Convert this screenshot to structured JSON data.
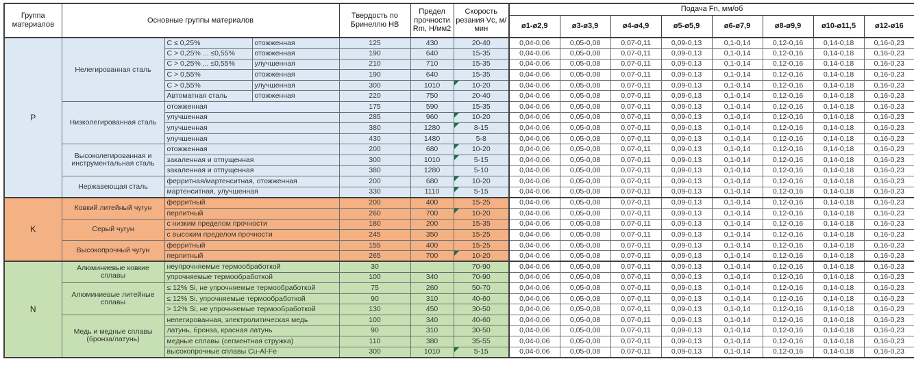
{
  "table": {
    "headers": {
      "group": "Группа материалов",
      "main_groups": "Основные группы материалов",
      "hardness": "Твердость по Бринеллю HB",
      "strength": "Предел прочности Rm, Н/мм2",
      "speed": "Скорость резания Vc, м/мин",
      "feed": "Подача Fn, мм/об",
      "diameters": [
        "ø1-ø2,9",
        "ø3-ø3,9",
        "ø4-ø4,9",
        "ø5-ø5,9",
        "ø6-ø7,9",
        "ø8-ø9,9",
        "ø10-ø11,5",
        "ø12-ø16"
      ]
    },
    "feeds": [
      "0,04-0,06",
      "0,05-0,08",
      "0,07-0,11",
      "0,09-0,13",
      "0,1-0,14",
      "0,12-0,16",
      "0,14-0,18",
      "0,16-0,23"
    ],
    "comment_flag_color": "#1e7145",
    "groups": [
      {
        "code": "P",
        "color": "#DCE9F5",
        "families": [
          {
            "name": "Нелегированная сталь",
            "rows": [
              {
                "cond": "C ≤ 0,25%",
                "state": "отожженная",
                "hb": "125",
                "rm": "430",
                "vc": "20-40",
                "note": false
              },
              {
                "cond": "C > 0,25% ... ≤0,55%",
                "state": "отожженная",
                "hb": "190",
                "rm": "640",
                "vc": "15-35",
                "note": false
              },
              {
                "cond": "C > 0,25% ... ≤0,55%",
                "state": "улучшенная",
                "hb": "210",
                "rm": "710",
                "vc": "15-35",
                "note": false
              },
              {
                "cond": "C > 0,55%",
                "state": "отожженная",
                "hb": "190",
                "rm": "640",
                "vc": "15-35",
                "note": false
              },
              {
                "cond": "C > 0,55%",
                "state": "улучшенная",
                "hb": "300",
                "rm": "1010",
                "vc": "10-20",
                "note": true
              },
              {
                "cond": "Автоматная сталь",
                "state": "отожженная",
                "hb": "220",
                "rm": "750",
                "vc": "20-40",
                "note": false
              }
            ]
          },
          {
            "name": "Низколегированная сталь",
            "rows": [
              {
                "desc": "отожженная",
                "hb": "175",
                "rm": "590",
                "vc": "15-35",
                "note": false
              },
              {
                "desc": "улучшенная",
                "hb": "285",
                "rm": "960",
                "vc": "10-20",
                "note": true
              },
              {
                "desc": "улучшенная",
                "hb": "380",
                "rm": "1280",
                "vc": "8-15",
                "note": true
              },
              {
                "desc": "улучшенная",
                "hb": "430",
                "rm": "1480",
                "vc": "5-8",
                "note": false
              }
            ]
          },
          {
            "name": "Высоколегированная и инструментальная сталь",
            "rows": [
              {
                "desc": "отожженная",
                "hb": "200",
                "rm": "680",
                "vc": "10-20",
                "note": true
              },
              {
                "desc": "закаленная и отпущенная",
                "hb": "300",
                "rm": "1010",
                "vc": "5-15",
                "note": true
              },
              {
                "desc": "закаленная и отпущенная",
                "hb": "380",
                "rm": "1280",
                "vc": "5-10",
                "note": false
              }
            ]
          },
          {
            "name": "Нержавеющая сталь",
            "rows": [
              {
                "desc": "ферритная/мартенситная, отожженная",
                "hb": "200",
                "rm": "680",
                "vc": "10-20",
                "note": true
              },
              {
                "desc": "мартенситная, улучшенная",
                "hb": "330",
                "rm": "1110",
                "vc": "5-15",
                "note": true
              }
            ]
          }
        ]
      },
      {
        "code": "K",
        "color": "#F4B183",
        "families": [
          {
            "name": "Ковкий литейный чугун",
            "rows": [
              {
                "desc": "ферритный",
                "hb": "200",
                "rm": "400",
                "vc": "15-25",
                "note": false
              },
              {
                "desc": "перлитный",
                "hb": "260",
                "rm": "700",
                "vc": "10-20",
                "note": true
              }
            ]
          },
          {
            "name": "Серый чугун",
            "rows": [
              {
                "desc": "с низким пределом прочности",
                "hb": "180",
                "rm": "200",
                "vc": "15-35",
                "note": false
              },
              {
                "desc": "с высоким пределом прочности",
                "hb": "245",
                "rm": "350",
                "vc": "15-25",
                "note": false
              }
            ]
          },
          {
            "name": "Высокопрочный чугун",
            "rows": [
              {
                "desc": "ферритный",
                "hb": "155",
                "rm": "400",
                "vc": "15-25",
                "note": false
              },
              {
                "desc": "перлитный",
                "hb": "265",
                "rm": "700",
                "vc": "10-20",
                "note": true
              }
            ]
          }
        ]
      },
      {
        "code": "N",
        "color": "#C6E0B4",
        "families": [
          {
            "name": "Алюминиевые ковкие сплавы",
            "rows": [
              {
                "desc": "неупрочняемые термообработкой",
                "hb": "30",
                "rm": "",
                "vc": "70-90",
                "note": false
              },
              {
                "desc": "упрочняемые термообработкой",
                "hb": "100",
                "rm": "340",
                "vc": "70-90",
                "note": false
              }
            ]
          },
          {
            "name": "Алюминиевые литейные сплавы",
            "rows": [
              {
                "desc": "≤ 12% Si, не упрочняемые термообработкой",
                "hb": "75",
                "rm": "260",
                "vc": "50-70",
                "note": false
              },
              {
                "desc": "≤ 12% Si, упрочняемые термообработкой",
                "hb": "90",
                "rm": "310",
                "vc": "40-60",
                "note": false
              },
              {
                "desc": "> 12% Si, не упрочняемые термообработкой",
                "hb": "130",
                "rm": "450",
                "vc": "30-50",
                "note": false
              }
            ]
          },
          {
            "name": "Медь и медные сплавы (бронза/латунь)",
            "rows": [
              {
                "desc": "нелегированная, электролитическая медь",
                "hb": "100",
                "rm": "340",
                "vc": "40-60",
                "note": false
              },
              {
                "desc": "латунь, бронза, красная латунь",
                "hb": "90",
                "rm": "310",
                "vc": "30-50",
                "note": false
              },
              {
                "desc": "медные сплавы (сегментная стружка)",
                "hb": "110",
                "rm": "380",
                "vc": "35-55",
                "note": false
              },
              {
                "desc": "высокопрочные сплавы Cu-Al-Fe",
                "hb": "300",
                "rm": "1010",
                "vc": "5-15",
                "note": true
              }
            ]
          }
        ]
      }
    ]
  }
}
